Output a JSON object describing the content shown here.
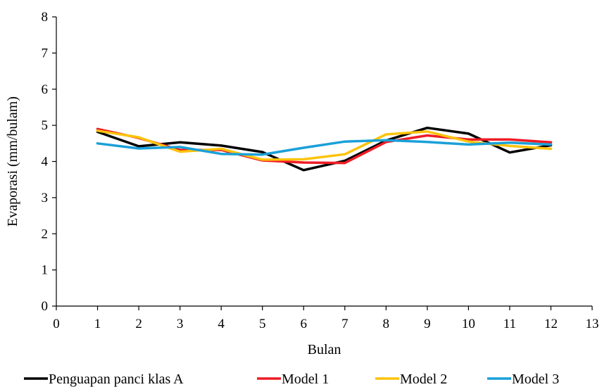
{
  "chart_data": {
    "type": "line",
    "title": "",
    "xlabel": "Bulan",
    "ylabel": "Evaporasi (mm/bulam)",
    "xlim": [
      0,
      13
    ],
    "ylim": [
      0,
      8
    ],
    "x_ticks": [
      "0",
      "1",
      "2",
      "3",
      "4",
      "5",
      "6",
      "7",
      "8",
      "9",
      "10",
      "11",
      "12",
      "13"
    ],
    "y_ticks": [
      "0",
      "1",
      "2",
      "3",
      "4",
      "5",
      "6",
      "7",
      "8"
    ],
    "grid": false,
    "legend_position": "bottom",
    "x": [
      1,
      2,
      3,
      4,
      5,
      6,
      7,
      8,
      9,
      10,
      11,
      12
    ],
    "series": [
      {
        "name": "Penguapan panci klas A",
        "color": "#000000",
        "values": [
          4.82,
          4.42,
          4.53,
          4.44,
          4.26,
          3.76,
          4.02,
          4.58,
          4.93,
          4.77,
          4.25,
          4.45
        ]
      },
      {
        "name": "Model 1",
        "color": "#ee1c25",
        "values": [
          4.9,
          4.65,
          4.32,
          4.32,
          4.03,
          3.97,
          3.96,
          4.54,
          4.72,
          4.61,
          4.61,
          4.53
        ]
      },
      {
        "name": "Model 2",
        "color": "#fcc30b",
        "values": [
          4.85,
          4.67,
          4.27,
          4.35,
          4.05,
          4.06,
          4.2,
          4.75,
          4.83,
          4.55,
          4.43,
          4.35
        ]
      },
      {
        "name": "Model 3",
        "color": "#1aa0d8",
        "values": [
          4.5,
          4.36,
          4.4,
          4.21,
          4.19,
          4.38,
          4.55,
          4.59,
          4.54,
          4.47,
          4.52,
          4.47
        ]
      }
    ]
  }
}
